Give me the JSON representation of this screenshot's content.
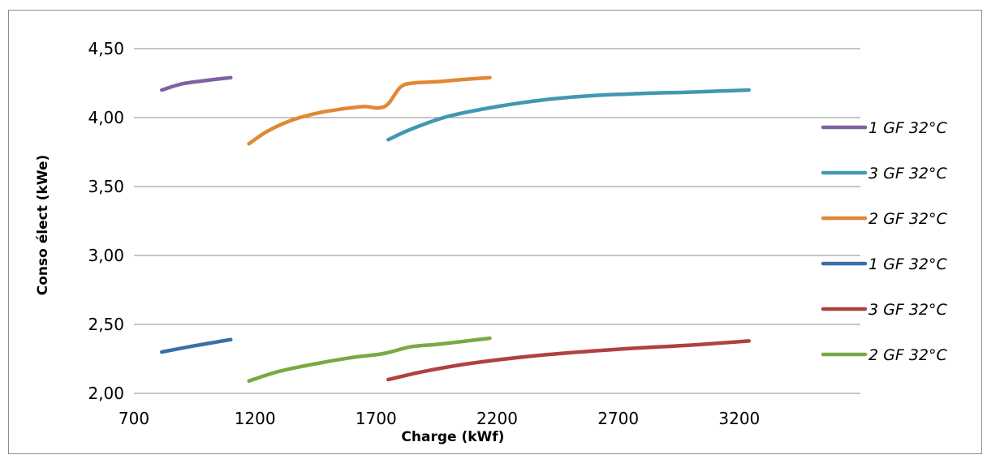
{
  "chart_data": {
    "type": "line",
    "xlabel": "Charge (kWf)",
    "ylabel": "Conso élect  (kWe)",
    "xlim": [
      700,
      3700
    ],
    "ylim": [
      2.0,
      4.5
    ],
    "x_ticks": [
      "700",
      "1200",
      "1700",
      "2200",
      "2700",
      "3200"
    ],
    "y_ticks": [
      "2,00",
      "2,50",
      "3,00",
      "3,50",
      "4,00",
      "4,50"
    ],
    "grid": "horizontal",
    "legend_position": "right",
    "series": [
      {
        "name": "1 GF 32°C",
        "color": "#7e62a1",
        "x": [
          815,
          900,
          1000,
          1100
        ],
        "y": [
          4.2,
          4.245,
          4.27,
          4.29
        ]
      },
      {
        "name": "3 GF 32°C",
        "color": "#4198af",
        "x": [
          1750,
          1850,
          2000,
          2200,
          2400,
          2600,
          2800,
          3000,
          3240
        ],
        "y": [
          3.84,
          3.92,
          4.01,
          4.08,
          4.13,
          4.16,
          4.175,
          4.185,
          4.2
        ]
      },
      {
        "name": "2 GF 32°C",
        "color": "#e18834",
        "x": [
          1175,
          1250,
          1350,
          1450,
          1550,
          1650,
          1710,
          1750,
          1800,
          1850,
          1950,
          2050,
          2170
        ],
        "y": [
          3.81,
          3.9,
          3.98,
          4.03,
          4.06,
          4.08,
          4.07,
          4.1,
          4.22,
          4.25,
          4.26,
          4.275,
          4.29
        ]
      },
      {
        "name": "1 GF 32°C",
        "color": "#3a6eab",
        "x": [
          815,
          950,
          1100
        ],
        "y": [
          2.3,
          2.345,
          2.39
        ]
      },
      {
        "name": "3 GF 32°C",
        "color": "#b0413e",
        "x": [
          1750,
          1900,
          2100,
          2400,
          2700,
          3000,
          3240
        ],
        "y": [
          2.1,
          2.16,
          2.22,
          2.28,
          2.32,
          2.35,
          2.38
        ]
      },
      {
        "name": "2 GF 32°C",
        "color": "#7aa844",
        "x": [
          1175,
          1300,
          1450,
          1600,
          1720,
          1780,
          1850,
          1950,
          2050,
          2170
        ],
        "y": [
          2.09,
          2.16,
          2.215,
          2.26,
          2.285,
          2.31,
          2.34,
          2.355,
          2.375,
          2.4
        ]
      }
    ]
  }
}
